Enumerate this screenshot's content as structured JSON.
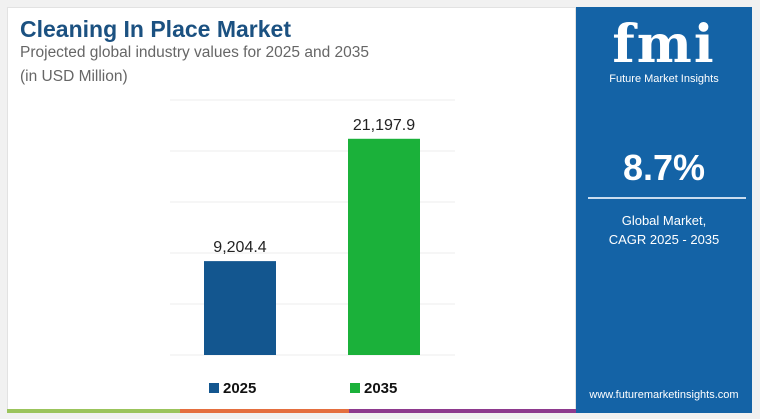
{
  "header": {
    "title": "Cleaning In Place Market",
    "subtitle_line1": "Projected global industry values for 2025 and 2035",
    "subtitle_line2": "(in USD Million)"
  },
  "chart_data": {
    "type": "bar",
    "categories": [
      "2025",
      "2035"
    ],
    "values": [
      9204.4,
      21197.9
    ],
    "value_labels": [
      "9,204.4",
      "21,197.9"
    ],
    "colors": [
      "#13568f",
      "#1bb13a"
    ],
    "legend": [
      "2025",
      "2035"
    ],
    "legend_position": "bottom",
    "ylim": [
      0,
      25000
    ],
    "grid": true,
    "xlabel": "",
    "ylabel": ""
  },
  "panel": {
    "logo_text": "fmi",
    "brand": "Future Market Insights",
    "cagr": "8.7%",
    "desc_line1": "Global Market,",
    "desc_line2": "CAGR 2025 - 2035",
    "url": "www.futuremarketinsights.com"
  },
  "colors": {
    "panel": "#1463a6",
    "strip": [
      "#9bc45c",
      "#e46f3f",
      "#8e3a8e"
    ]
  }
}
